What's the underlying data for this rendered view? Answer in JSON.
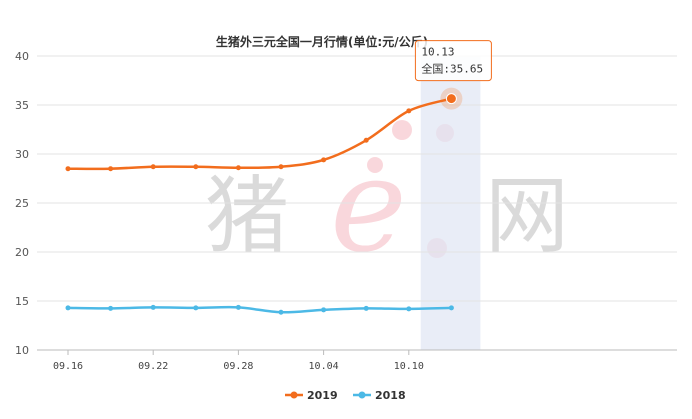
{
  "chart_data": {
    "type": "line",
    "title": "生猪外三元全国一月行情(单位:元/公斤)",
    "ylim": [
      10,
      40
    ],
    "yticks": [
      10,
      15,
      20,
      25,
      30,
      35,
      40
    ],
    "x_tick_labels": [
      "09.16",
      "09.22",
      "09.28",
      "10.04",
      "10.10"
    ],
    "x": [
      "09.16",
      "09.19",
      "09.22",
      "09.25",
      "09.28",
      "10.01",
      "10.04",
      "10.07",
      "10.10",
      "10.13"
    ],
    "series": [
      {
        "name": "2019",
        "color": "#f26d1d",
        "values": [
          28.5,
          28.5,
          28.7,
          28.7,
          28.6,
          28.7,
          29.4,
          31.4,
          34.4,
          35.65
        ]
      },
      {
        "name": "2018",
        "color": "#4cb9e6",
        "values": [
          14.3,
          14.25,
          14.35,
          14.3,
          14.35,
          13.85,
          14.1,
          14.25,
          14.2,
          14.3
        ]
      }
    ],
    "grid": true,
    "legend_position": "bottom-center",
    "tooltip": {
      "header": "10.13",
      "body": "全国:35.65",
      "highlighted_category": "10.13"
    },
    "watermark": "猪e网"
  }
}
